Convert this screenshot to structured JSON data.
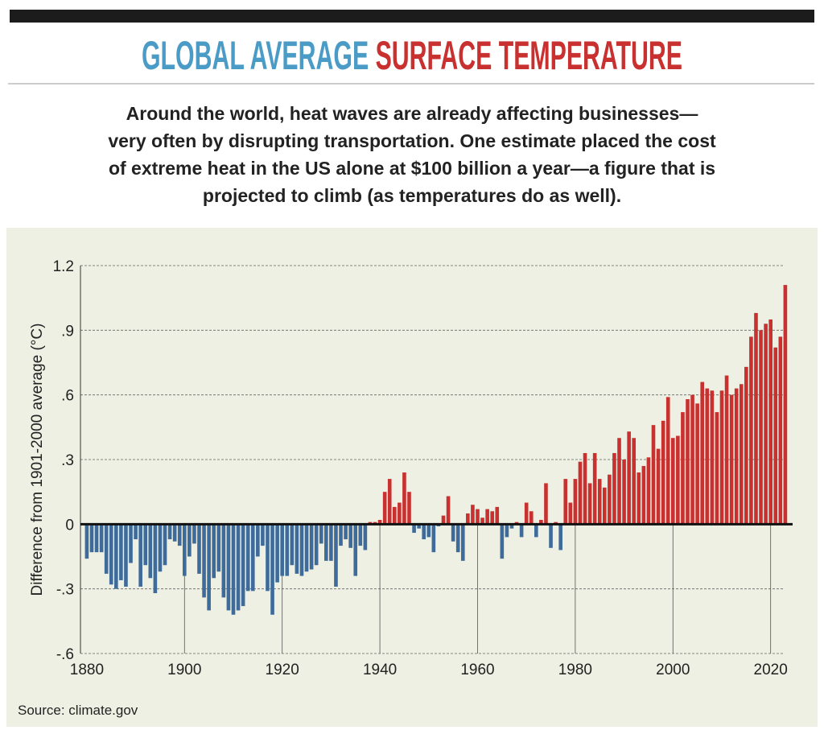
{
  "chart_data": {
    "type": "bar",
    "title": [
      "GLOBAL AVERAGE",
      "SURFACE TEMPERATURE"
    ],
    "title_colors": [
      "#4a9bc6",
      "#c8312f"
    ],
    "subtitle": [
      "Around the world, heat waves are already affecting businesses—",
      "very often by disrupting transportation. One estimate placed the cost",
      "of extreme heat in the US alone at $100 billion a year—a figure that is",
      "projected to climb (as temperatures do as well)."
    ],
    "y_label": "Difference from 1901-2000 average (°C)",
    "source": "Source: climate.gov",
    "positive_color": "#c8312f",
    "negative_color": "#3f6b9b",
    "x": [
      1880,
      1881,
      1882,
      1883,
      1884,
      1885,
      1886,
      1887,
      1888,
      1889,
      1890,
      1891,
      1892,
      1893,
      1894,
      1895,
      1896,
      1897,
      1898,
      1899,
      1900,
      1901,
      1902,
      1903,
      1904,
      1905,
      1906,
      1907,
      1908,
      1909,
      1910,
      1911,
      1912,
      1913,
      1914,
      1915,
      1916,
      1917,
      1918,
      1919,
      1920,
      1921,
      1922,
      1923,
      1924,
      1925,
      1926,
      1927,
      1928,
      1929,
      1930,
      1931,
      1932,
      1933,
      1934,
      1935,
      1936,
      1937,
      1938,
      1939,
      1940,
      1941,
      1942,
      1943,
      1944,
      1945,
      1946,
      1947,
      1948,
      1949,
      1950,
      1951,
      1952,
      1953,
      1954,
      1955,
      1956,
      1957,
      1958,
      1959,
      1960,
      1961,
      1962,
      1963,
      1964,
      1965,
      1966,
      1967,
      1968,
      1969,
      1970,
      1971,
      1972,
      1973,
      1974,
      1975,
      1976,
      1977,
      1978,
      1979,
      1980,
      1981,
      1982,
      1983,
      1984,
      1985,
      1986,
      1987,
      1988,
      1989,
      1990,
      1991,
      1992,
      1993,
      1994,
      1995,
      1996,
      1997,
      1998,
      1999,
      2000,
      2001,
      2002,
      2003,
      2004,
      2005,
      2006,
      2007,
      2008,
      2009,
      2010,
      2011,
      2012,
      2013,
      2014,
      2015,
      2016,
      2017,
      2018,
      2019,
      2020,
      2021,
      2022,
      2023
    ],
    "values": [
      -0.16,
      -0.13,
      -0.13,
      -0.13,
      -0.23,
      -0.28,
      -0.3,
      -0.26,
      -0.29,
      -0.18,
      -0.07,
      -0.29,
      -0.19,
      -0.25,
      -0.32,
      -0.22,
      -0.19,
      -0.07,
      -0.08,
      -0.1,
      -0.24,
      -0.15,
      -0.09,
      -0.23,
      -0.34,
      -0.4,
      -0.25,
      -0.22,
      -0.34,
      -0.4,
      -0.42,
      -0.4,
      -0.38,
      -0.31,
      -0.31,
      -0.15,
      -0.1,
      -0.31,
      -0.42,
      -0.27,
      -0.24,
      -0.24,
      -0.19,
      -0.23,
      -0.24,
      -0.22,
      -0.21,
      -0.19,
      -0.09,
      -0.17,
      -0.17,
      -0.29,
      -0.1,
      -0.07,
      -0.11,
      -0.24,
      -0.1,
      -0.12,
      0.01,
      0.01,
      0.02,
      0.15,
      0.21,
      0.08,
      0.1,
      0.24,
      0.15,
      -0.04,
      -0.02,
      -0.07,
      -0.06,
      -0.13,
      -0.01,
      0.04,
      0.13,
      -0.08,
      -0.13,
      -0.17,
      0.05,
      0.09,
      0.07,
      0.03,
      0.07,
      0.06,
      0.08,
      -0.16,
      -0.06,
      -0.02,
      0.01,
      -0.06,
      0.1,
      0.06,
      -0.06,
      0.02,
      0.19,
      -0.11,
      0.01,
      -0.12,
      0.21,
      0.1,
      0.21,
      0.29,
      0.33,
      0.19,
      0.33,
      0.21,
      0.17,
      0.23,
      0.33,
      0.4,
      0.3,
      0.43,
      0.4,
      0.24,
      0.27,
      0.31,
      0.46,
      0.35,
      0.48,
      0.59,
      0.4,
      0.41,
      0.52,
      0.58,
      0.6,
      0.56,
      0.66,
      0.63,
      0.62,
      0.52,
      0.62,
      0.69,
      0.6,
      0.63,
      0.65,
      0.73,
      0.87,
      0.98,
      0.9,
      0.93,
      0.95,
      0.82,
      0.87,
      1.11
    ],
    "xlim": [
      1878.7,
      2024.5
    ],
    "xticks": [
      1880,
      1900,
      1920,
      1940,
      1960,
      1980,
      2000,
      2020
    ],
    "ylim": [
      -0.6,
      1.2
    ],
    "yticks": [
      {
        "value": -0.6,
        "label": "-.6"
      },
      {
        "value": -0.3,
        "label": "-.3"
      },
      0,
      {
        "value": 0.3,
        "label": ".3"
      },
      {
        "value": 0.6,
        "label": ".6"
      },
      {
        "value": 0.9,
        "label": ".9"
      },
      1.2
    ],
    "grid": true
  }
}
